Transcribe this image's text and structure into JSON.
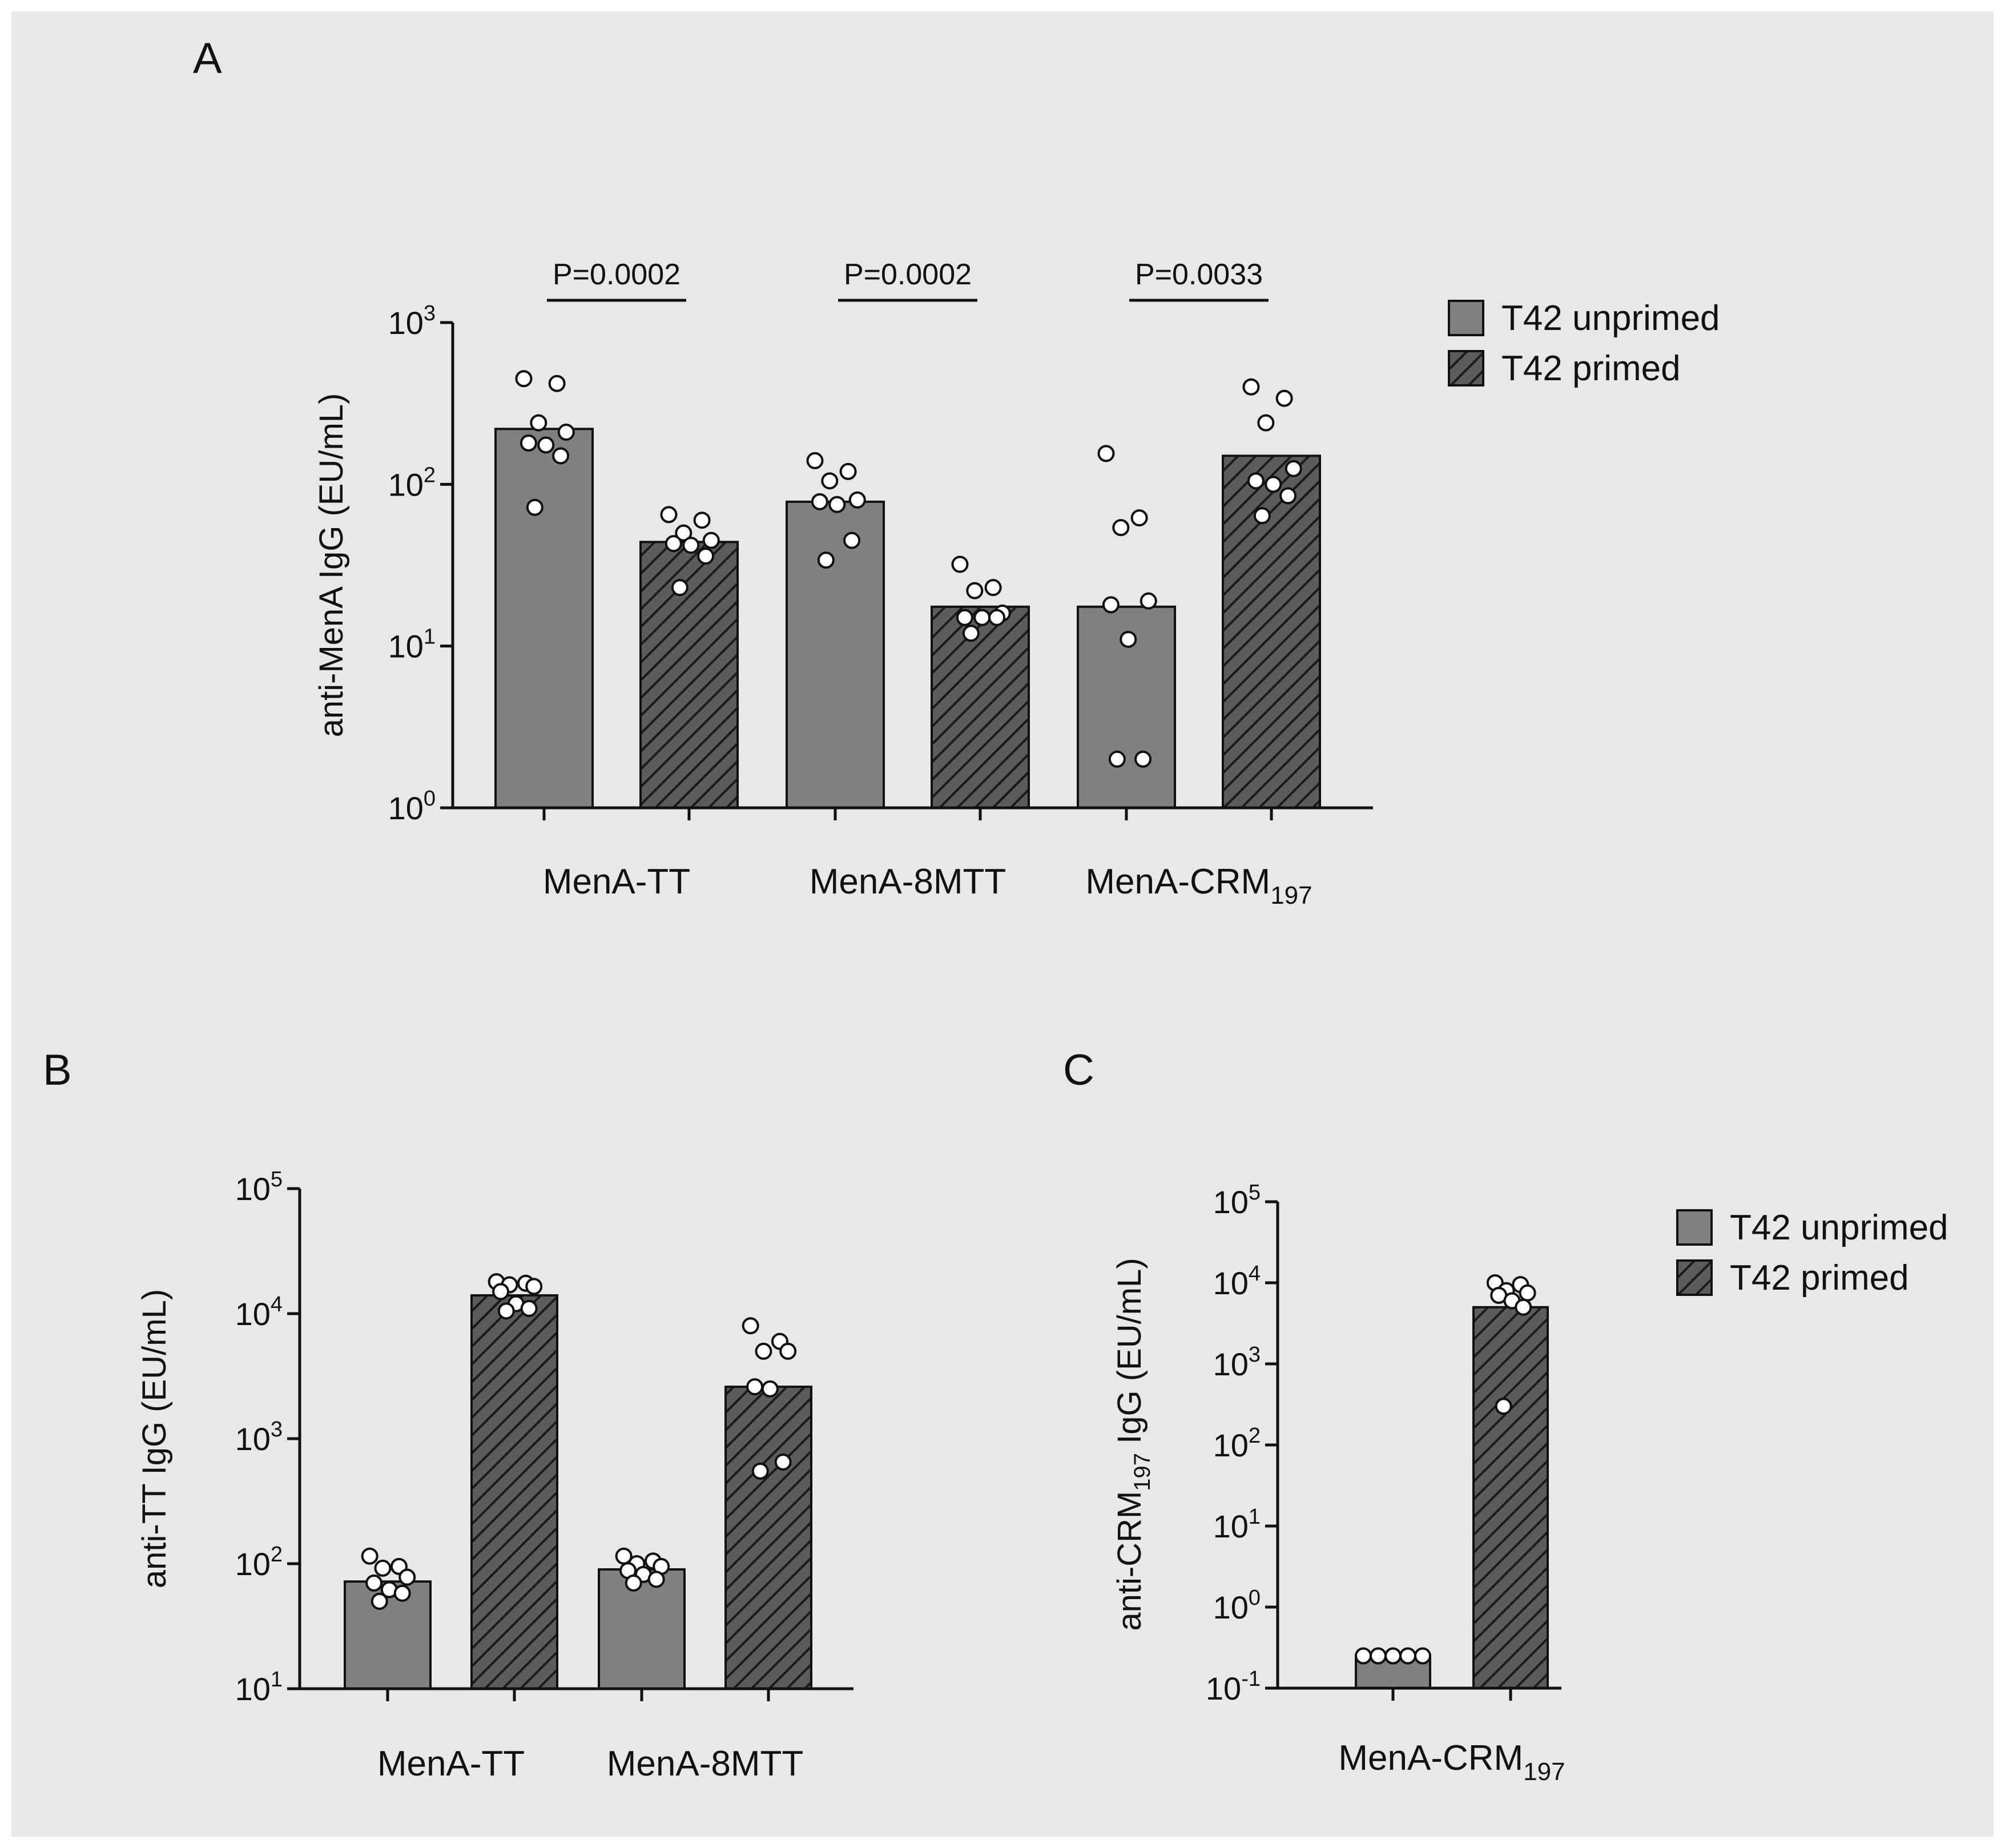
{
  "colors": {
    "background": "#e8e8e8",
    "unprimed_fill": "#808080",
    "primed_fill": "#5c5c5c",
    "hatch": "#1a1a1a",
    "axis": "#111111",
    "point_fill": "#ffffff"
  },
  "legend_top": {
    "unprimed": "T42 unprimed",
    "primed": "T42 primed"
  },
  "legend_bottom": {
    "unprimed": "T42 unprimed",
    "primed": "T42 primed"
  },
  "chart_data": [
    {
      "panel": "A",
      "type": "bar",
      "scale": "log10",
      "ylabel": "anti-MenA IgG (EU/mL)",
      "ylim_exp": [
        0,
        3
      ],
      "ticks": [
        {
          "base": "10",
          "exp": "0"
        },
        {
          "base": "10",
          "exp": "1"
        },
        {
          "base": "10",
          "exp": "2"
        },
        {
          "base": "10",
          "exp": "3"
        }
      ],
      "categories": [
        {
          "label": "MenA-TT",
          "sub": ""
        },
        {
          "label": "MenA-8MTT",
          "sub": ""
        },
        {
          "label": "MenA-CRM",
          "sub": "197"
        }
      ],
      "series": [
        {
          "name": "T42 unprimed",
          "values": [
            220,
            78,
            17.5
          ],
          "points": [
            [
              450,
              420,
              240,
              210,
              180,
              175,
              150,
              72
            ],
            [
              140,
              120,
              105,
              80,
              78,
              75,
              45,
              34
            ],
            [
              155,
              62,
              54,
              19,
              18,
              11,
              2,
              2
            ]
          ]
        },
        {
          "name": "T42 primed",
          "values": [
            44,
            17.5,
            150
          ],
          "points": [
            [
              65,
              60,
              50,
              45,
              43,
              42,
              36,
              23
            ],
            [
              32,
              23,
              22,
              16,
              15,
              15,
              15,
              12
            ],
            [
              400,
              340,
              240,
              125,
              105,
              100,
              85,
              64
            ]
          ]
        }
      ],
      "annotations": [
        {
          "text": "P=0.0002",
          "group": 0
        },
        {
          "text": "P=0.0002",
          "group": 1
        },
        {
          "text": "P=0.0033",
          "group": 2
        }
      ]
    },
    {
      "panel": "B",
      "type": "bar",
      "scale": "log10",
      "ylabel": "anti-TT IgG (EU/mL)",
      "ylim_exp": [
        1,
        5
      ],
      "ticks": [
        {
          "base": "10",
          "exp": "1"
        },
        {
          "base": "10",
          "exp": "2"
        },
        {
          "base": "10",
          "exp": "3"
        },
        {
          "base": "10",
          "exp": "4"
        },
        {
          "base": "10",
          "exp": "5"
        }
      ],
      "categories": [
        {
          "label": "MenA-TT",
          "sub": ""
        },
        {
          "label": "MenA-8MTT",
          "sub": ""
        }
      ],
      "series": [
        {
          "name": "T42 unprimed",
          "values": [
            72,
            90
          ],
          "points": [
            [
              115,
              95,
              92,
              78,
              70,
              62,
              58,
              50
            ],
            [
              115,
              105,
              100,
              95,
              88,
              82,
              75,
              70
            ]
          ]
        },
        {
          "name": "T42 primed",
          "values": [
            14000,
            2600
          ],
          "points": [
            [
              18000,
              17500,
              17000,
              16500,
              15000,
              12000,
              11000,
              10500
            ],
            [
              8000,
              6000,
              5000,
              5000,
              2600,
              2500,
              650,
              550
            ]
          ]
        }
      ],
      "annotations": []
    },
    {
      "panel": "C",
      "type": "bar",
      "scale": "log10",
      "ylabel_main": "anti-CRM",
      "ylabel_sub": "197",
      "ylabel_rest": " IgG (EU/mL)",
      "ylim_exp": [
        -1,
        5
      ],
      "ticks": [
        {
          "base": "10",
          "exp": "-1"
        },
        {
          "base": "10",
          "exp": "0"
        },
        {
          "base": "10",
          "exp": "1"
        },
        {
          "base": "10",
          "exp": "2"
        },
        {
          "base": "10",
          "exp": "3"
        },
        {
          "base": "10",
          "exp": "4"
        },
        {
          "base": "10",
          "exp": "5"
        }
      ],
      "categories": [
        {
          "label": "MenA-CRM",
          "sub": "197"
        }
      ],
      "series": [
        {
          "name": "T42 unprimed",
          "values": [
            0.25
          ],
          "points": [
            [
              0.25,
              0.25,
              0.25,
              0.25,
              0.25
            ]
          ]
        },
        {
          "name": "T42 primed",
          "values": [
            5000
          ],
          "points": [
            [
              10000,
              9500,
              8000,
              7500,
              7000,
              6000,
              5000,
              300
            ]
          ]
        }
      ],
      "annotations": []
    }
  ],
  "panel_labels": {
    "a": "A",
    "b": "B",
    "c": "C"
  }
}
